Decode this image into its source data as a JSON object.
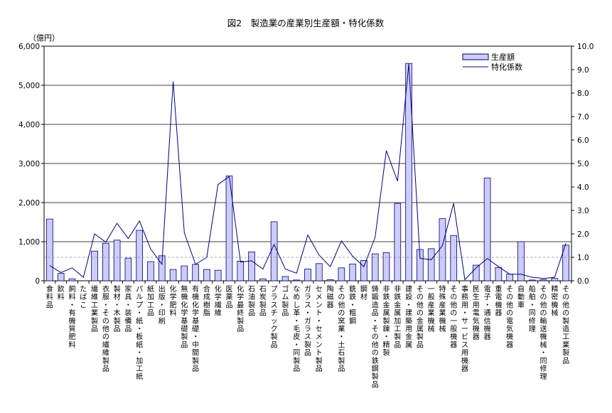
{
  "chart_data": {
    "type": "bar",
    "title": "図2　製造業の産業別生産額・特化係数",
    "y_unit_label": "（億円）",
    "ylim": [
      0,
      6000
    ],
    "y_ticks": [
      "0",
      "1,000",
      "2,000",
      "3,000",
      "4,000",
      "5,000",
      "6,000"
    ],
    "y2lim": [
      0,
      10
    ],
    "y2_ticks": [
      "0.0",
      "1.0",
      "2.0",
      "3.0",
      "4.0",
      "5.0",
      "6.0",
      "7.0",
      "8.0",
      "9.0",
      "10.0"
    ],
    "reference_line_y2": 1.0,
    "grid": true,
    "legend_position": "top-right",
    "categories": [
      "食料品",
      "飲料",
      "飼料・有機質肥料",
      "たばこ",
      "繊維工業製品",
      "衣服・その他の繊維製品",
      "製材・木製品",
      "家具・装備品",
      "パルプ・紙・板紙・加工紙",
      "紙加工品",
      "出版・印刷",
      "化学肥料",
      "無機化学基礎製品",
      "有機化学基礎・中間製品",
      "合成樹脂",
      "化学繊維",
      "医薬品",
      "化学最終製品",
      "石油製品",
      "石炭製品",
      "プラスチック製品",
      "ゴム製品",
      "なめし革・毛皮・同製品",
      "ガラス・ガラス製品",
      "セメント・セメント製品",
      "陶磁器",
      "その他の窯業・土石製品",
      "銑鉄・粗鋼",
      "鋼材",
      "鋳鍛造品・その他の鉄鋼製品",
      "非鉄金属製錬・精製",
      "非鉄金属加工製品",
      "建設・建築用金属",
      "その他の金属製品",
      "一般産業機械",
      "特殊産業機械",
      "その他の一般機器",
      "事務用・サービス用機器",
      "民生用電気機器",
      "電子・通信機器",
      "重電機器",
      "その他の電気機器",
      "自動車",
      "船舶・同修理",
      "その他の輸送機械・同修理",
      "精密機械",
      "その他の製造工業製品"
    ],
    "series": [
      {
        "name": "生産額",
        "kind": "bar",
        "axis": "left",
        "values": [
          1580,
          190,
          50,
          0,
          760,
          960,
          1040,
          580,
          1290,
          490,
          640,
          290,
          380,
          420,
          290,
          270,
          2680,
          500,
          740,
          50,
          1510,
          110,
          20,
          300,
          440,
          30,
          330,
          430,
          520,
          690,
          720,
          1980,
          5560,
          800,
          820,
          1590,
          1160,
          0,
          400,
          2630,
          340,
          170,
          1000,
          20,
          30,
          60,
          910
        ]
      },
      {
        "name": "特化係数",
        "kind": "line",
        "axis": "right",
        "values": [
          0.65,
          0.35,
          0.55,
          0.15,
          2.0,
          1.65,
          2.45,
          1.8,
          2.55,
          1.35,
          0.7,
          8.5,
          2.05,
          0.7,
          1.0,
          4.1,
          4.45,
          0.8,
          0.85,
          0.5,
          1.55,
          0.5,
          0.32,
          1.95,
          1.1,
          0.6,
          1.7,
          1.05,
          0.6,
          1.85,
          5.55,
          4.25,
          9.25,
          0.95,
          0.9,
          1.5,
          3.3,
          0.05,
          0.55,
          0.95,
          0.6,
          0.28,
          0.28,
          0.15,
          0.1,
          0.15,
          1.6
        ]
      }
    ]
  }
}
